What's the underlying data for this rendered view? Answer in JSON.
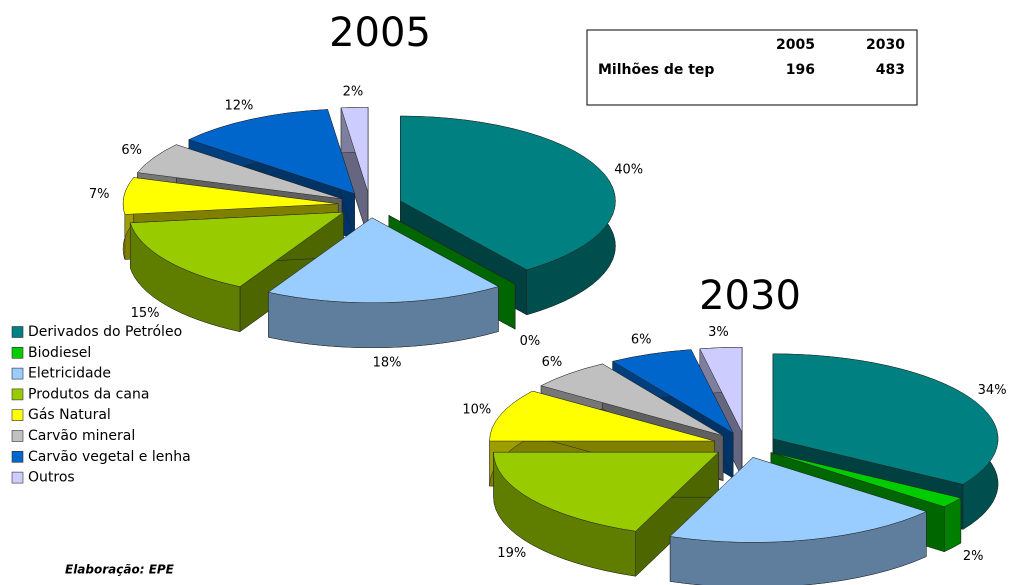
{
  "chart_data": [
    {
      "type": "pie",
      "title": "2005",
      "values": [
        40,
        0,
        18,
        15,
        7,
        6,
        12,
        2
      ],
      "value_labels": [
        "40%",
        "0%",
        "18%",
        "15%",
        "7%",
        "6%",
        "12%",
        "2%"
      ]
    },
    {
      "type": "pie",
      "title": "2030",
      "values": [
        34,
        2,
        20,
        19,
        10,
        6,
        6,
        3
      ],
      "value_labels": [
        "34%",
        "2%",
        "20%",
        "19%",
        "10%",
        "6%",
        "6%",
        "3%"
      ]
    }
  ],
  "legend": {
    "categories": [
      "Derivados do Petróleo",
      "Biodiesel",
      "Eletricidade",
      "Produtos da cana",
      "Gás Natural",
      "Carvão mineral",
      "Carvão vegetal e lenha",
      "Outros"
    ],
    "colors": [
      "#008080",
      "#00cc00",
      "#99ccff",
      "#99cc00",
      "#ffff00",
      "#c0c0c0",
      "#0066cc",
      "#ccccff"
    ]
  },
  "table": {
    "columns": [
      "2005",
      "2030"
    ],
    "rows": [
      {
        "label": "Milhões de tep",
        "values": [
          196,
          483
        ]
      }
    ]
  },
  "source": "Elaboração: EPE"
}
